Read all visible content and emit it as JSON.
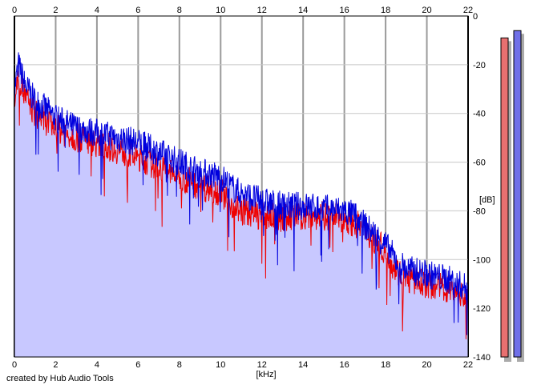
{
  "chart_data": {
    "type": "line",
    "title": "",
    "xlabel": "[kHz]",
    "ylabel": "[dB]",
    "x_ticks": [
      "0",
      "2",
      "4",
      "6",
      "8",
      "10",
      "12",
      "14",
      "16",
      "18",
      "20",
      "22"
    ],
    "y_ticks": [
      "0",
      "-20",
      "-40",
      "-60",
      "-80",
      "-100",
      "-120",
      "-140"
    ],
    "xlim": [
      0,
      22
    ],
    "ylim": [
      -140,
      0
    ],
    "grid": true,
    "fill_color": "#c8c8ff",
    "series": [
      {
        "color": "#0000dd",
        "x": [
          0,
          0.2,
          0.5,
          1,
          1.5,
          2,
          2.5,
          3,
          4,
          5,
          6,
          7,
          8,
          9,
          10,
          10.5,
          11,
          12,
          13,
          14,
          15,
          16,
          16.5,
          17,
          17.5,
          18,
          18.5,
          19,
          20,
          21,
          22
        ],
        "y": [
          -30,
          -20,
          -28,
          -35,
          -38,
          -42,
          -44,
          -46,
          -48,
          -50,
          -52,
          -56,
          -60,
          -64,
          -66,
          -70,
          -73,
          -76,
          -78,
          -78,
          -79,
          -80,
          -82,
          -86,
          -90,
          -94,
          -100,
          -104,
          -106,
          -108,
          -112
        ]
      },
      {
        "color": "#ee0000",
        "x": [
          0,
          0.2,
          0.5,
          1,
          1.5,
          2,
          2.5,
          3,
          4,
          5,
          6,
          7,
          8,
          9,
          10,
          10.5,
          11,
          12,
          13,
          14,
          15,
          16,
          16.5,
          17,
          17.5,
          18,
          18.5,
          19,
          20,
          21,
          22
        ],
        "y": [
          -34,
          -25,
          -33,
          -40,
          -43,
          -46,
          -48,
          -50,
          -52,
          -55,
          -58,
          -62,
          -66,
          -70,
          -72,
          -77,
          -80,
          -82,
          -83,
          -82,
          -82,
          -83,
          -85,
          -88,
          -92,
          -97,
          -104,
          -108,
          -110,
          -112,
          -116
        ]
      }
    ],
    "meters": [
      {
        "color": "#e87070",
        "value_db": -9
      },
      {
        "color": "#7070e8",
        "value_db": -6
      }
    ]
  },
  "footer": {
    "credit": "created by Hub Audio Tools"
  }
}
